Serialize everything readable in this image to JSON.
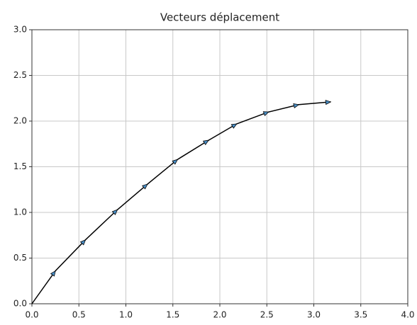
{
  "chart_data": {
    "type": "quiver",
    "title": "Vecteurs déplacement",
    "x": [
      0.0,
      0.25,
      0.57,
      0.91,
      1.23,
      1.55,
      1.88,
      2.18,
      2.52,
      2.84,
      3.18
    ],
    "y": [
      0.0,
      0.36,
      0.7,
      1.03,
      1.31,
      1.58,
      1.79,
      1.97,
      2.1,
      2.18,
      2.21
    ],
    "color": "#000000",
    "head_color": "#4a90c8",
    "xlim": [
      0,
      4
    ],
    "ylim": [
      0,
      3
    ],
    "xticks": [
      {
        "value": 0,
        "label": "0.0"
      },
      {
        "value": 0.5,
        "label": "0.5"
      },
      {
        "value": 1,
        "label": "1.0"
      },
      {
        "value": 1.5,
        "label": "1.5"
      },
      {
        "value": 2,
        "label": "2.0"
      },
      {
        "value": 2.5,
        "label": "2.5"
      },
      {
        "value": 3,
        "label": "3.0"
      },
      {
        "value": 3.5,
        "label": "3.5"
      },
      {
        "value": 4,
        "label": "4.0"
      }
    ],
    "yticks": [
      {
        "value": 0,
        "label": "0.0"
      },
      {
        "value": 0.5,
        "label": "0.5"
      },
      {
        "value": 1,
        "label": "1.0"
      },
      {
        "value": 1.5,
        "label": "1.5"
      },
      {
        "value": 2,
        "label": "2.0"
      },
      {
        "value": 2.5,
        "label": "2.5"
      },
      {
        "value": 3,
        "label": "3.0"
      }
    ],
    "grid": true
  }
}
